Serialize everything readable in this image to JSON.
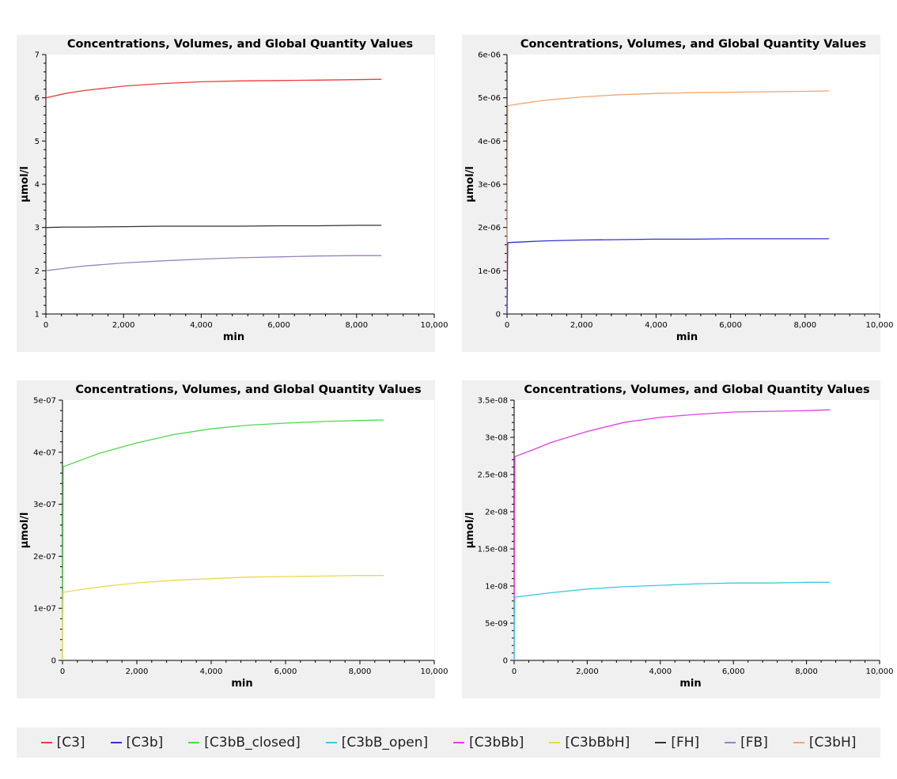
{
  "chart_data": [
    {
      "type": "line",
      "title": "Concentrations, Volumes, and Global Quantity Values",
      "xlabel": "min",
      "ylabel": "µmol/l",
      "xlim": [
        0,
        10000
      ],
      "ylim": [
        1,
        7
      ],
      "xticks": [
        0,
        2000,
        4000,
        6000,
        8000,
        10000
      ],
      "xtick_labels": [
        "0",
        "2,000",
        "4,000",
        "6,000",
        "8,000",
        "10,000"
      ],
      "yticks": [
        1,
        2,
        3,
        4,
        5,
        6,
        7
      ],
      "ytick_labels": [
        "1",
        "2",
        "3",
        "4",
        "5",
        "6",
        "7"
      ],
      "series": [
        {
          "name": "[C3]",
          "color": "#ee3b3b",
          "x": [
            0,
            500,
            1000,
            2000,
            3000,
            4000,
            5000,
            6000,
            7000,
            8000,
            8640
          ],
          "y": [
            6.0,
            6.1,
            6.17,
            6.27,
            6.33,
            6.37,
            6.39,
            6.4,
            6.41,
            6.42,
            6.43
          ]
        },
        {
          "name": "[FH]",
          "color": "#333333",
          "x": [
            0,
            500,
            1000,
            2000,
            3000,
            4000,
            5000,
            6000,
            7000,
            8000,
            8640
          ],
          "y": [
            3.0,
            3.01,
            3.01,
            3.02,
            3.03,
            3.03,
            3.03,
            3.04,
            3.04,
            3.05,
            3.05
          ]
        },
        {
          "name": "[FB]",
          "color": "#9683c0",
          "x": [
            0,
            500,
            1000,
            2000,
            3000,
            4000,
            5000,
            6000,
            7000,
            8000,
            8640
          ],
          "y": [
            2.0,
            2.06,
            2.11,
            2.18,
            2.23,
            2.27,
            2.3,
            2.32,
            2.34,
            2.35,
            2.35
          ]
        }
      ]
    },
    {
      "type": "line",
      "title": "Concentrations, Volumes, and Global Quantity Values",
      "xlabel": "min",
      "ylabel": "µmol/l",
      "xlim": [
        0,
        10000
      ],
      "ylim": [
        0,
        6e-06
      ],
      "xticks": [
        0,
        2000,
        4000,
        6000,
        8000,
        10000
      ],
      "xtick_labels": [
        "0",
        "2,000",
        "4,000",
        "6,000",
        "8,000",
        "10,000"
      ],
      "yticks": [
        0,
        1e-06,
        2e-06,
        3e-06,
        4e-06,
        5e-06,
        6e-06
      ],
      "ytick_labels": [
        "0",
        "1e-06",
        "2e-06",
        "3e-06",
        "4e-06",
        "5e-06",
        "6e-06"
      ],
      "series": [
        {
          "name": "[C3bH]",
          "color": "#f5a46e",
          "x": [
            0,
            20,
            500,
            1000,
            2000,
            3000,
            4000,
            5000,
            6000,
            7000,
            8000,
            8640
          ],
          "y": [
            0,
            4.82e-06,
            4.88e-06,
            4.94e-06,
            5.02e-06,
            5.07e-06,
            5.1e-06,
            5.12e-06,
            5.13e-06,
            5.14e-06,
            5.15e-06,
            5.16e-06
          ]
        },
        {
          "name": "[C3b]",
          "color": "#3232cc",
          "x": [
            0,
            20,
            500,
            1000,
            2000,
            3000,
            4000,
            5000,
            6000,
            7000,
            8000,
            8640
          ],
          "y": [
            0,
            1.65e-06,
            1.67e-06,
            1.69e-06,
            1.71e-06,
            1.72e-06,
            1.73e-06,
            1.73e-06,
            1.74e-06,
            1.74e-06,
            1.74e-06,
            1.74e-06
          ]
        }
      ]
    },
    {
      "type": "line",
      "title": "Concentrations, Volumes, and Global Quantity Values",
      "xlabel": "min",
      "ylabel": "µmol/l",
      "xlim": [
        0,
        10000
      ],
      "ylim": [
        0,
        5e-07
      ],
      "xticks": [
        0,
        2000,
        4000,
        6000,
        8000,
        10000
      ],
      "xtick_labels": [
        "0",
        "2,000",
        "4,000",
        "6,000",
        "8,000",
        "10,000"
      ],
      "yticks": [
        0,
        1e-07,
        2e-07,
        3e-07,
        4e-07,
        5e-07
      ],
      "ytick_labels": [
        "0",
        "1e-07",
        "2e-07",
        "3e-07",
        "4e-07",
        "5e-07"
      ],
      "series": [
        {
          "name": "[C3bB_closed]",
          "color": "#4cd94c",
          "x": [
            0,
            20,
            500,
            1000,
            2000,
            3000,
            4000,
            5000,
            6000,
            7000,
            8000,
            8640
          ],
          "y": [
            0,
            3.72e-07,
            3.85e-07,
            3.98e-07,
            4.18e-07,
            4.34e-07,
            4.45e-07,
            4.52e-07,
            4.56e-07,
            4.59e-07,
            4.61e-07,
            4.62e-07
          ]
        },
        {
          "name": "[C3bBbH]",
          "color": "#eed74f",
          "x": [
            0,
            20,
            500,
            1000,
            2000,
            3000,
            4000,
            5000,
            6000,
            7000,
            8000,
            8640
          ],
          "y": [
            0,
            1.31e-07,
            1.36e-07,
            1.41e-07,
            1.49e-07,
            1.54e-07,
            1.57e-07,
            1.6e-07,
            1.61e-07,
            1.62e-07,
            1.63e-07,
            1.63e-07
          ]
        }
      ]
    },
    {
      "type": "line",
      "title": "Concentrations, Volumes, and Global Quantity Values",
      "xlabel": "min",
      "ylabel": "µmol/l",
      "xlim": [
        0,
        10000
      ],
      "ylim": [
        0,
        3.5e-08
      ],
      "xticks": [
        0,
        2000,
        4000,
        6000,
        8000,
        10000
      ],
      "xtick_labels": [
        "0",
        "2,000",
        "4,000",
        "6,000",
        "8,000",
        "10,000"
      ],
      "yticks": [
        0,
        5e-09,
        1e-08,
        1.5e-08,
        2e-08,
        2.5e-08,
        3e-08,
        3.5e-08
      ],
      "ytick_labels": [
        "0",
        "5e-09",
        "1e-08",
        "1.5e-08",
        "2e-08",
        "2.5e-08",
        "3e-08",
        "3.5e-08"
      ],
      "series": [
        {
          "name": "[C3bBb]",
          "color": "#e040e0",
          "x": [
            0,
            20,
            500,
            1000,
            2000,
            3000,
            4000,
            5000,
            6000,
            7000,
            8000,
            8640
          ],
          "y": [
            0,
            2.74e-08,
            2.83e-08,
            2.93e-08,
            3.08e-08,
            3.2e-08,
            3.27e-08,
            3.31e-08,
            3.34e-08,
            3.35e-08,
            3.36e-08,
            3.37e-08
          ]
        },
        {
          "name": "[C3bB_open]",
          "color": "#3cc8e0",
          "x": [
            0,
            20,
            500,
            1000,
            2000,
            3000,
            4000,
            5000,
            6000,
            7000,
            8000,
            8640
          ],
          "y": [
            0,
            8.5e-09,
            8.8e-09,
            9.1e-09,
            9.6e-09,
            9.9e-09,
            1.01e-08,
            1.03e-08,
            1.04e-08,
            1.04e-08,
            1.05e-08,
            1.05e-08
          ]
        }
      ]
    }
  ],
  "legend": [
    {
      "label": "[C3]",
      "color": "#ee3b3b"
    },
    {
      "label": "[C3b]",
      "color": "#3232cc"
    },
    {
      "label": "[C3bB_closed]",
      "color": "#4cd94c"
    },
    {
      "label": "[C3bB_open]",
      "color": "#3cc8e0"
    },
    {
      "label": "[C3bBb]",
      "color": "#e040e0"
    },
    {
      "label": "[C3bBbH]",
      "color": "#eed74f"
    },
    {
      "label": "[FH]",
      "color": "#333333"
    },
    {
      "label": "[FB]",
      "color": "#9683c0"
    },
    {
      "label": "[C3bH]",
      "color": "#f5a46e"
    }
  ]
}
